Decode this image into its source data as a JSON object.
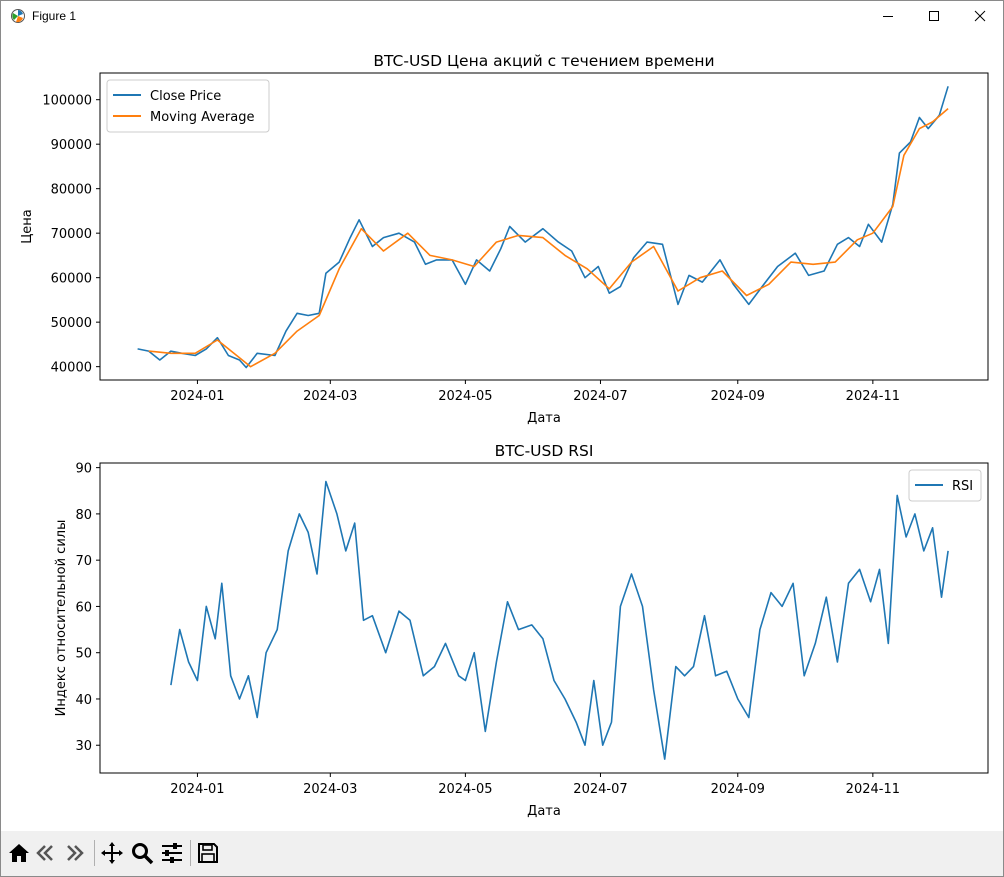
{
  "window": {
    "title": "Figure 1",
    "icons": [
      "matplotlib-logo-icon",
      "minimize-icon",
      "maximize-icon",
      "close-icon"
    ]
  },
  "toolbar": {
    "buttons": [
      "home-icon",
      "back-icon",
      "forward-icon",
      "pan-icon",
      "zoom-icon",
      "configure-subplots-icon",
      "save-icon"
    ]
  },
  "colors": {
    "close": "#1f77b4",
    "ma": "#ff7f0e",
    "rsi": "#1f77b4"
  },
  "chart_data": [
    {
      "type": "line",
      "title": "BTC-USD Цена акций с течением времени",
      "xlabel": "Дата",
      "ylabel": "Цена",
      "x_range": [
        "2023-11-18",
        "2024-12-23"
      ],
      "ylim": [
        37000,
        106000
      ],
      "x_ticks": [
        {
          "date": "2024-01-01",
          "label": "2024-01"
        },
        {
          "date": "2024-03-01",
          "label": "2024-03"
        },
        {
          "date": "2024-05-01",
          "label": "2024-05"
        },
        {
          "date": "2024-07-01",
          "label": "2024-07"
        },
        {
          "date": "2024-09-01",
          "label": "2024-09"
        },
        {
          "date": "2024-11-01",
          "label": "2024-11"
        }
      ],
      "y_ticks": [
        40000,
        50000,
        60000,
        70000,
        80000,
        90000,
        100000
      ],
      "y_tick_labels": [
        "40000",
        "50000",
        "60000",
        "70000",
        "80000",
        "90000",
        "100000"
      ],
      "legend": {
        "position": "upper left"
      },
      "grid": false,
      "series": [
        {
          "name": "Close Price",
          "x": [
            "2023-12-05",
            "2023-12-10",
            "2023-12-15",
            "2023-12-20",
            "2023-12-25",
            "2023-12-31",
            "2024-01-05",
            "2024-01-10",
            "2024-01-15",
            "2024-01-20",
            "2024-01-23",
            "2024-01-28",
            "2024-02-05",
            "2024-02-10",
            "2024-02-15",
            "2024-02-20",
            "2024-02-25",
            "2024-02-28",
            "2024-03-05",
            "2024-03-10",
            "2024-03-14",
            "2024-03-20",
            "2024-03-25",
            "2024-04-01",
            "2024-04-08",
            "2024-04-13",
            "2024-04-18",
            "2024-04-25",
            "2024-05-01",
            "2024-05-06",
            "2024-05-12",
            "2024-05-17",
            "2024-05-21",
            "2024-05-28",
            "2024-06-05",
            "2024-06-12",
            "2024-06-18",
            "2024-06-24",
            "2024-06-30",
            "2024-07-05",
            "2024-07-10",
            "2024-07-16",
            "2024-07-22",
            "2024-07-29",
            "2024-08-05",
            "2024-08-10",
            "2024-08-16",
            "2024-08-24",
            "2024-08-30",
            "2024-09-06",
            "2024-09-12",
            "2024-09-19",
            "2024-09-27",
            "2024-10-03",
            "2024-10-10",
            "2024-10-16",
            "2024-10-21",
            "2024-10-26",
            "2024-10-30",
            "2024-11-05",
            "2024-11-10",
            "2024-11-13",
            "2024-11-18",
            "2024-11-22",
            "2024-11-26",
            "2024-12-01",
            "2024-12-05"
          ],
          "values": [
            44000,
            43500,
            41500,
            43500,
            43000,
            42500,
            44000,
            46500,
            42500,
            41500,
            39800,
            43000,
            42500,
            48000,
            52000,
            51500,
            52000,
            61000,
            63500,
            69000,
            73000,
            67000,
            69000,
            70000,
            68000,
            63000,
            64000,
            64000,
            58500,
            64000,
            61500,
            66500,
            71500,
            68000,
            71000,
            68000,
            66000,
            60000,
            62500,
            56500,
            58000,
            64500,
            68000,
            67500,
            54000,
            60500,
            59000,
            64000,
            58500,
            54000,
            58000,
            62500,
            65500,
            60500,
            61500,
            67500,
            69000,
            67000,
            72000,
            68000,
            76500,
            88000,
            90500,
            96000,
            93500,
            96500,
            103000
          ]
        },
        {
          "name": "Moving Average",
          "x": [
            "2023-12-10",
            "2023-12-20",
            "2023-12-31",
            "2024-01-10",
            "2024-01-20",
            "2024-01-25",
            "2024-02-05",
            "2024-02-15",
            "2024-02-25",
            "2024-03-05",
            "2024-03-15",
            "2024-03-25",
            "2024-04-05",
            "2024-04-15",
            "2024-04-25",
            "2024-05-05",
            "2024-05-15",
            "2024-05-25",
            "2024-06-05",
            "2024-06-15",
            "2024-06-25",
            "2024-07-05",
            "2024-07-15",
            "2024-07-25",
            "2024-08-05",
            "2024-08-15",
            "2024-08-25",
            "2024-09-05",
            "2024-09-15",
            "2024-09-25",
            "2024-10-05",
            "2024-10-15",
            "2024-10-25",
            "2024-11-01",
            "2024-11-10",
            "2024-11-15",
            "2024-11-22",
            "2024-11-28",
            "2024-12-05"
          ],
          "values": [
            43500,
            43000,
            43000,
            46000,
            42000,
            40000,
            43000,
            48000,
            51500,
            62000,
            71000,
            66000,
            70000,
            65000,
            64000,
            62500,
            68000,
            69500,
            69000,
            65000,
            62000,
            57500,
            63500,
            67000,
            57000,
            60000,
            61500,
            56000,
            58500,
            63500,
            63000,
            63500,
            68500,
            70000,
            76000,
            87500,
            93500,
            95000,
            98000
          ]
        }
      ]
    },
    {
      "type": "line",
      "title": "BTC-USD RSI",
      "xlabel": "Дата",
      "ylabel": "Индекс относительной силы",
      "x_range": [
        "2023-11-18",
        "2024-12-23"
      ],
      "ylim": [
        24,
        91
      ],
      "x_ticks": [
        {
          "date": "2024-01-01",
          "label": "2024-01"
        },
        {
          "date": "2024-03-01",
          "label": "2024-03"
        },
        {
          "date": "2024-05-01",
          "label": "2024-05"
        },
        {
          "date": "2024-07-01",
          "label": "2024-07"
        },
        {
          "date": "2024-09-01",
          "label": "2024-09"
        },
        {
          "date": "2024-11-01",
          "label": "2024-11"
        }
      ],
      "y_ticks": [
        30,
        40,
        50,
        60,
        70,
        80,
        90
      ],
      "y_tick_labels": [
        "30",
        "40",
        "50",
        "60",
        "70",
        "80",
        "90"
      ],
      "legend": {
        "position": "upper right"
      },
      "grid": false,
      "series": [
        {
          "name": "RSI",
          "x": [
            "2023-12-20",
            "2023-12-24",
            "2023-12-28",
            "2024-01-01",
            "2024-01-05",
            "2024-01-09",
            "2024-01-12",
            "2024-01-16",
            "2024-01-20",
            "2024-01-24",
            "2024-01-28",
            "2024-02-01",
            "2024-02-06",
            "2024-02-11",
            "2024-02-16",
            "2024-02-20",
            "2024-02-24",
            "2024-02-28",
            "2024-03-04",
            "2024-03-08",
            "2024-03-12",
            "2024-03-16",
            "2024-03-20",
            "2024-03-26",
            "2024-04-01",
            "2024-04-06",
            "2024-04-12",
            "2024-04-17",
            "2024-04-22",
            "2024-04-28",
            "2024-05-01",
            "2024-05-05",
            "2024-05-10",
            "2024-05-15",
            "2024-05-20",
            "2024-05-25",
            "2024-05-31",
            "2024-06-05",
            "2024-06-10",
            "2024-06-15",
            "2024-06-20",
            "2024-06-24",
            "2024-06-28",
            "2024-07-02",
            "2024-07-06",
            "2024-07-10",
            "2024-07-15",
            "2024-07-20",
            "2024-07-25",
            "2024-07-30",
            "2024-08-04",
            "2024-08-08",
            "2024-08-12",
            "2024-08-17",
            "2024-08-22",
            "2024-08-27",
            "2024-09-01",
            "2024-09-06",
            "2024-09-11",
            "2024-09-16",
            "2024-09-21",
            "2024-09-26",
            "2024-10-01",
            "2024-10-06",
            "2024-10-11",
            "2024-10-16",
            "2024-10-21",
            "2024-10-26",
            "2024-10-31",
            "2024-11-04",
            "2024-11-08",
            "2024-11-12",
            "2024-11-16",
            "2024-11-20",
            "2024-11-24",
            "2024-11-28",
            "2024-12-02",
            "2024-12-05"
          ],
          "values": [
            43,
            55,
            48,
            44,
            60,
            53,
            65,
            45,
            40,
            45,
            36,
            50,
            55,
            72,
            80,
            76,
            67,
            87,
            80,
            72,
            78,
            57,
            58,
            50,
            59,
            57,
            45,
            47,
            52,
            45,
            44,
            50,
            33,
            48,
            61,
            55,
            56,
            53,
            44,
            40,
            35,
            30,
            44,
            30,
            35,
            60,
            67,
            60,
            42,
            27,
            47,
            45,
            47,
            58,
            45,
            46,
            40,
            36,
            55,
            63,
            60,
            65,
            45,
            52,
            62,
            48,
            65,
            68,
            61,
            68,
            52,
            84,
            75,
            80,
            72,
            77,
            62,
            72
          ]
        }
      ]
    }
  ]
}
